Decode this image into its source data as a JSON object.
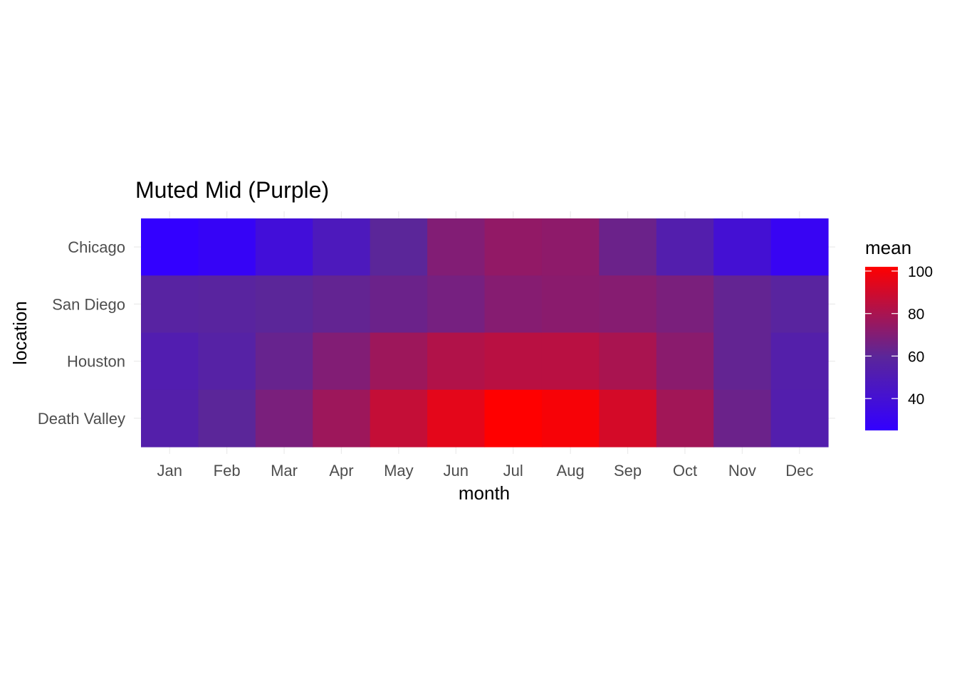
{
  "chart_data": {
    "type": "heatmap",
    "title": "Muted Mid (Purple)",
    "xlabel": "month",
    "ylabel": "location",
    "x_categories": [
      "Jan",
      "Feb",
      "Mar",
      "Apr",
      "May",
      "Jun",
      "Jul",
      "Aug",
      "Sep",
      "Oct",
      "Nov",
      "Dec"
    ],
    "y_categories": [
      "Chicago",
      "San Diego",
      "Houston",
      "Death Valley"
    ],
    "values": [
      [
        25,
        28,
        38,
        48,
        60,
        70,
        74,
        73,
        64,
        53,
        40,
        29
      ],
      [
        57,
        58,
        60,
        62,
        64,
        67,
        71,
        72,
        71,
        68,
        62,
        58
      ],
      [
        52,
        56,
        63,
        70,
        77,
        82,
        84,
        84,
        80,
        72,
        62,
        54
      ],
      [
        54,
        60,
        68,
        77,
        87,
        95,
        102,
        100,
        91,
        78,
        64,
        53
      ]
    ],
    "legend": {
      "title": "mean",
      "breaks": [
        40,
        60,
        80,
        100
      ],
      "range": [
        25,
        102
      ],
      "position": "right"
    },
    "colors": {
      "low": "#3300ff",
      "mid": "#5b2699",
      "high": "#ff0000",
      "midpoint": 60
    },
    "grid": true
  }
}
